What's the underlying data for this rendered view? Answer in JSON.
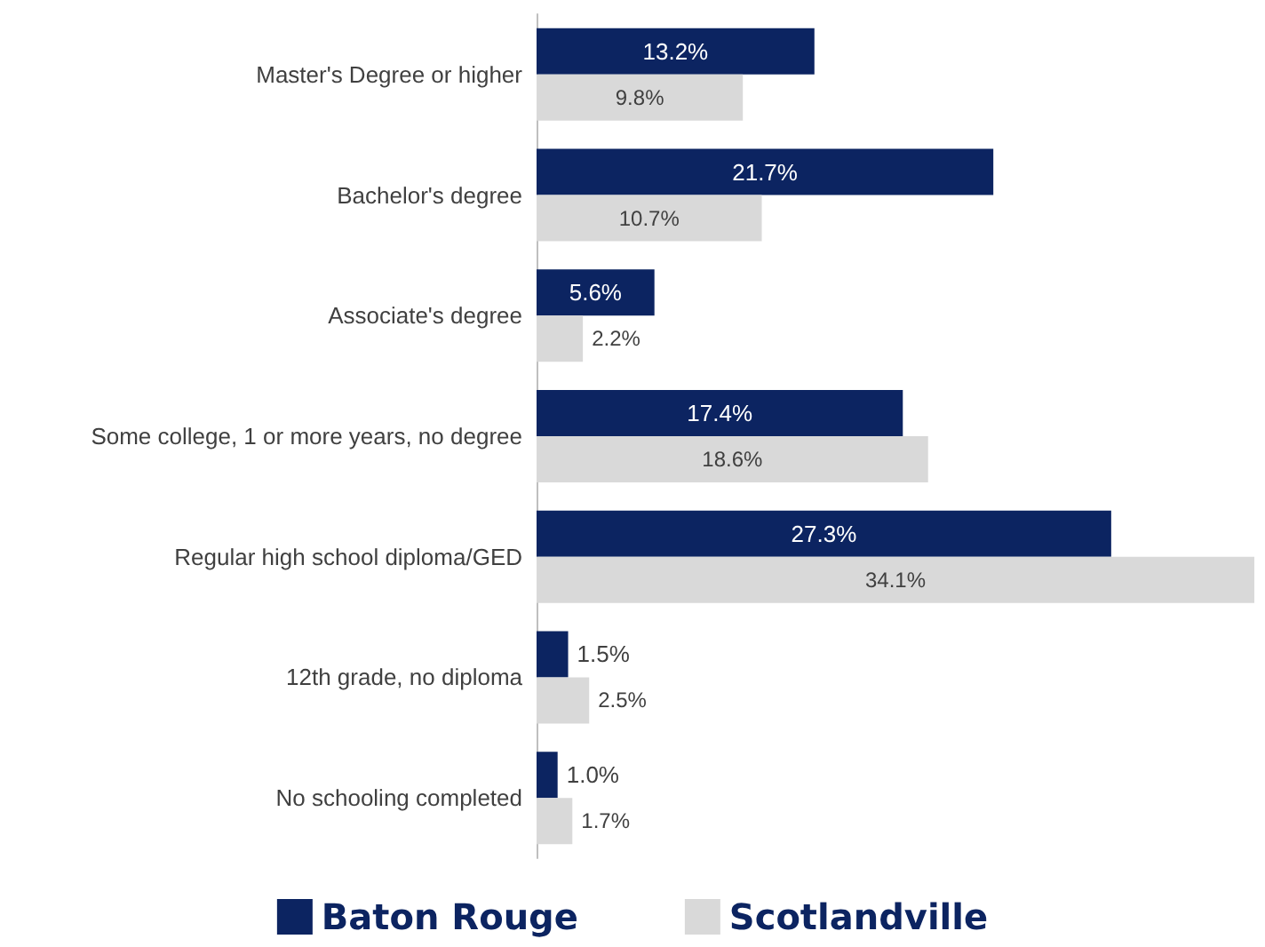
{
  "chart_data": {
    "type": "bar",
    "orientation": "horizontal",
    "legend": "bottom",
    "categories": [
      "Master's Degree or higher",
      "Bachelor's degree",
      "Associate's degree",
      "Some college, 1 or more years, no degree",
      "Regular high school diploma/GED",
      "12th grade, no diploma",
      "No schooling completed"
    ],
    "series": [
      {
        "name": "Baton Rouge",
        "color": "#0c2461",
        "values": [
          13.2,
          21.7,
          5.6,
          17.4,
          27.3,
          1.5,
          1.0
        ],
        "value_labels": [
          "13.2%",
          "21.7%",
          "5.6%",
          "17.4%",
          "27.3%",
          "1.5%",
          "1.0%"
        ]
      },
      {
        "name": "Scotlandville",
        "color": "#d9d9d9",
        "values": [
          9.8,
          10.7,
          2.2,
          18.6,
          34.1,
          2.5,
          1.7
        ],
        "value_labels": [
          "9.8%",
          "10.7%",
          "2.2%",
          "18.6%",
          "34.1%",
          "2.5%",
          "1.7%"
        ]
      }
    ]
  }
}
